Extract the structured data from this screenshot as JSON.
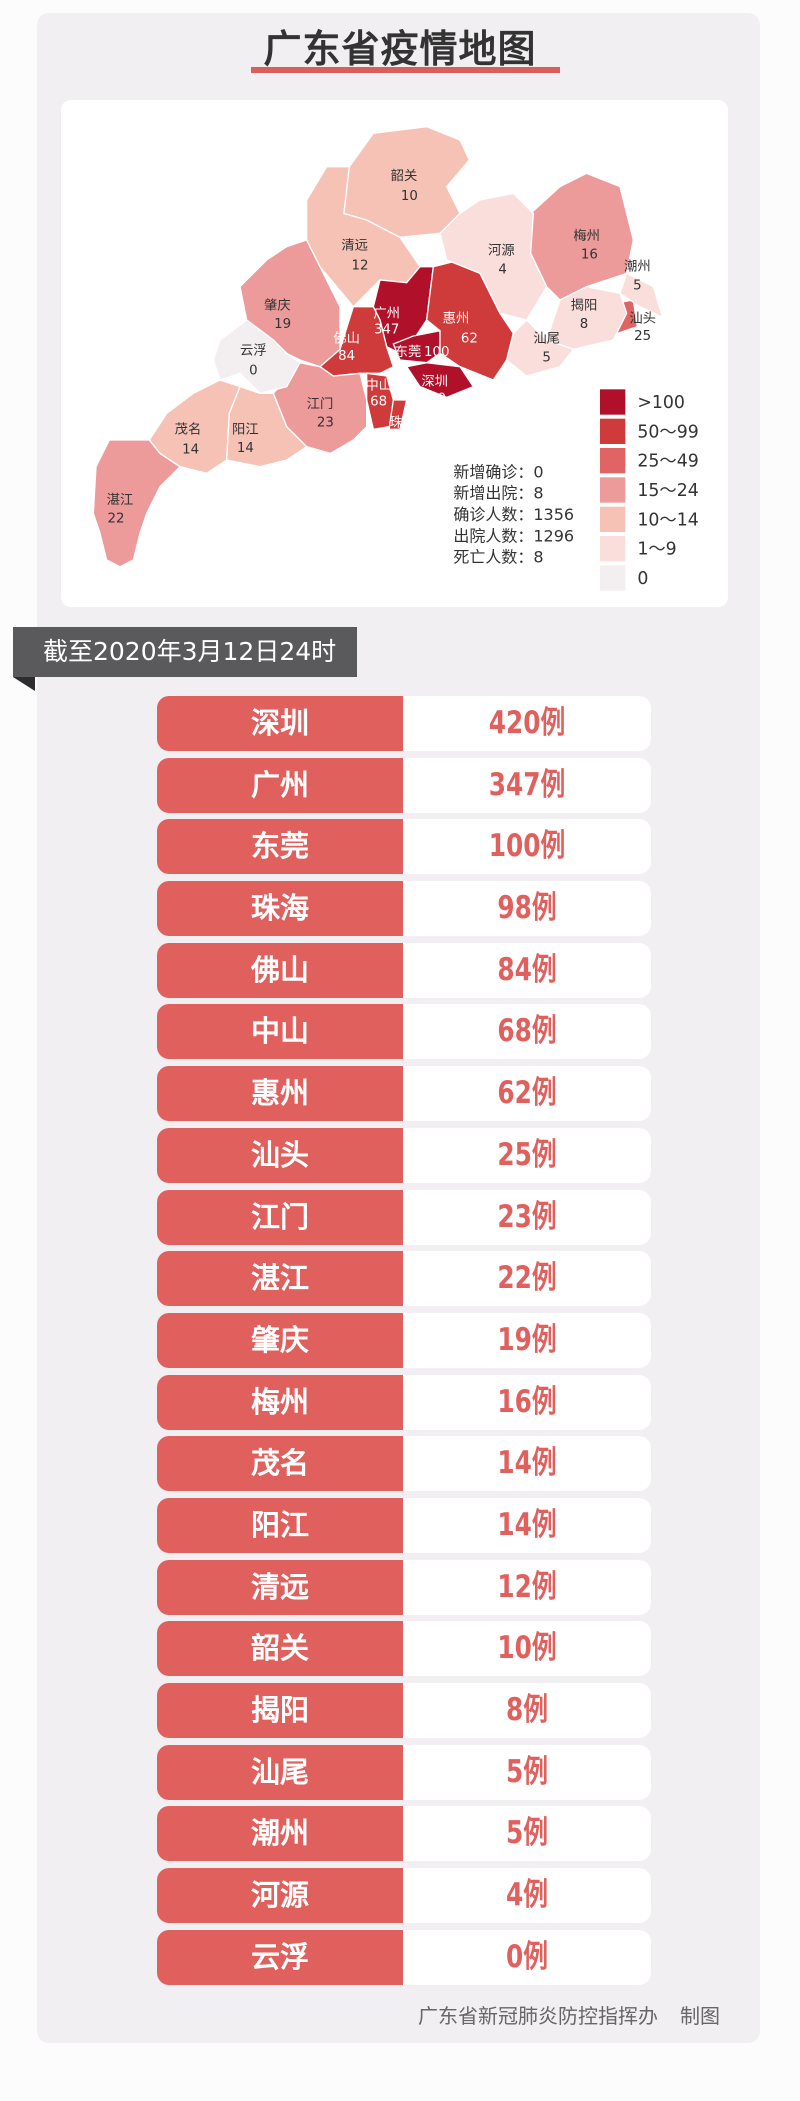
{
  "title": "广东省疫情地图",
  "date_banner": "截至2020年3月12日24时",
  "legend": [
    {
      "label": ">100",
      "color": "#b0102a"
    },
    {
      "label": "50～99",
      "color": "#cf3b3b"
    },
    {
      "label": "25～49",
      "color": "#e06464"
    },
    {
      "label": "15～24",
      "color": "#ec9a9a"
    },
    {
      "label": "10～14",
      "color": "#f6c2b6"
    },
    {
      "label": "1～9",
      "color": "#f9dedb"
    },
    {
      "label": "0",
      "color": "#f3eef0"
    }
  ],
  "stats": [
    {
      "label": "新增确诊",
      "value": "0"
    },
    {
      "label": "新增出院",
      "value": "8"
    },
    {
      "label": "确诊人数",
      "value": "1356"
    },
    {
      "label": "出院人数",
      "value": "1296"
    },
    {
      "label": "死亡人数",
      "value": "8"
    }
  ],
  "regions": [
    {
      "name": "深圳",
      "count": 420
    },
    {
      "name": "广州",
      "count": 347
    },
    {
      "name": "东莞",
      "count": 100
    },
    {
      "name": "珠海",
      "count": 98
    },
    {
      "name": "佛山",
      "count": 84
    },
    {
      "name": "中山",
      "count": 68
    },
    {
      "name": "惠州",
      "count": 62
    },
    {
      "name": "汕头",
      "count": 25
    },
    {
      "name": "江门",
      "count": 23
    },
    {
      "name": "湛江",
      "count": 22
    },
    {
      "name": "肇庆",
      "count": 19
    },
    {
      "name": "梅州",
      "count": 16
    },
    {
      "name": "茂名",
      "count": 14
    },
    {
      "name": "阳江",
      "count": 14
    },
    {
      "name": "清远",
      "count": 12
    },
    {
      "name": "韶关",
      "count": 10
    },
    {
      "name": "揭阳",
      "count": 8
    },
    {
      "name": "汕尾",
      "count": 5
    },
    {
      "name": "潮州",
      "count": 5
    },
    {
      "name": "河源",
      "count": 4
    },
    {
      "name": "云浮",
      "count": 0
    }
  ],
  "unit": "例",
  "footer": {
    "source": "广东省新冠肺炎防控指挥办",
    "suffix": "制图"
  }
}
